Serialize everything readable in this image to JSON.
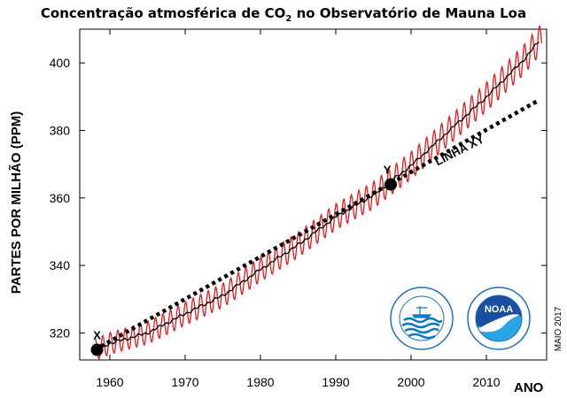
{
  "chart_data": {
    "type": "line",
    "title_prefix": "Concentração atmosférica de CO",
    "title_subscript": "2",
    "title_suffix": " no Observatório de Mauna Loa",
    "xlabel": "ANO",
    "ylabel": "PARTES POR MILHÃO (PPM)",
    "xlim": [
      1956,
      2018
    ],
    "ylim": [
      312,
      410
    ],
    "xticks": [
      1960,
      1970,
      1980,
      1990,
      2000,
      2010
    ],
    "yticks": [
      320,
      340,
      360,
      380,
      400
    ],
    "grid": false,
    "series": [
      {
        "kind": "monthly-seasonal",
        "color": "#e8191c",
        "seasonal_amplitude_ppm": 3.2,
        "x": [
          1958,
          1960,
          1965,
          1970,
          1975,
          1980,
          1985,
          1990,
          1995,
          2000,
          2005,
          2010,
          2015,
          2017
        ],
        "y": [
          315,
          316.9,
          320.0,
          325.7,
          331.1,
          338.8,
          346.1,
          354.4,
          360.8,
          369.6,
          379.8,
          389.9,
          401.0,
          406.5
        ]
      },
      {
        "kind": "annual-trend",
        "color": "#000000",
        "x": [
          1958,
          1960,
          1965,
          1970,
          1975,
          1980,
          1985,
          1990,
          1995,
          2000,
          2005,
          2010,
          2015,
          2017
        ],
        "y": [
          315,
          316.9,
          320.0,
          325.7,
          331.1,
          338.8,
          346.1,
          354.4,
          360.8,
          369.6,
          379.8,
          389.9,
          401.0,
          406.5
        ]
      },
      {
        "kind": "xy-line",
        "color": "#000000",
        "style": "dotted",
        "x": [
          1958,
          2017
        ],
        "y": [
          315,
          389
        ]
      }
    ],
    "points": [
      {
        "label": "X",
        "x": 1958.3,
        "y": 315
      },
      {
        "label": "Y",
        "x": 1997.3,
        "y": 364
      }
    ],
    "line_label": "LINHA XY",
    "credit": "MAIO 2017"
  },
  "logos": [
    {
      "name": "noaa-ocean-service-logo",
      "ring_color": "#1f6fb5",
      "wave_color": "#0a7ac0"
    },
    {
      "name": "noaa-logo",
      "text": "NOAA",
      "ring_color": "#1f6fb5",
      "top_color": "#1a4ea0",
      "bottom_color": "#27a6e3"
    }
  ]
}
